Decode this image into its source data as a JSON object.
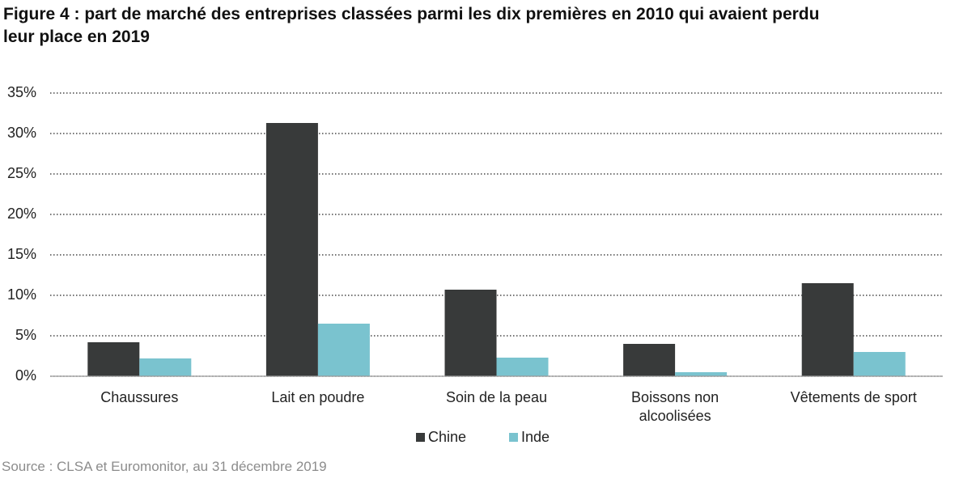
{
  "chart_data": {
    "type": "bar",
    "title": "Figure 4 : part de marché des entreprises classées parmi les dix premières en 2010 qui avaient perdu leur place en 2019",
    "source": "Source : CLSA et Euromonitor, au 31 décembre 2019",
    "categories": [
      "Chaussures",
      "Lait en poudre",
      "Soin de la peau",
      "Boissons non\nalcoolisées",
      "Vêtements de sport"
    ],
    "series": [
      {
        "name": "Chine",
        "color": "#383a3a",
        "values": [
          4.2,
          31.3,
          10.7,
          4.0,
          11.5
        ]
      },
      {
        "name": "Inde",
        "color": "#7ac3cf",
        "values": [
          2.2,
          6.5,
          2.3,
          0.5,
          3.0
        ]
      }
    ],
    "ylim": [
      0,
      35
    ],
    "yticks": [
      {
        "value": 0,
        "label": "0%"
      },
      {
        "value": 5,
        "label": "5%"
      },
      {
        "value": 10,
        "label": "10%"
      },
      {
        "value": 15,
        "label": "15%"
      },
      {
        "value": 20,
        "label": "20%"
      },
      {
        "value": 25,
        "label": "25%"
      },
      {
        "value": 30,
        "label": "30%"
      },
      {
        "value": 35,
        "label": "35%"
      }
    ],
    "grid": true
  }
}
